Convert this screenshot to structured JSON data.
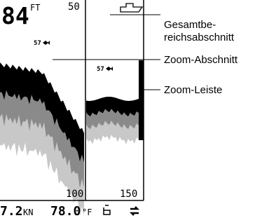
{
  "screen": {
    "depth": "84",
    "depth_unit": "FT",
    "range_top": "50",
    "fish_depths": [
      "57",
      "57"
    ],
    "scale_labels": [
      "100",
      "150"
    ],
    "speed": "7.2",
    "speed_unit": "KN",
    "temperature": "78.0",
    "temperature_unit": "°F"
  },
  "callouts": [
    {
      "label_lines": [
        "Gesamtbe-",
        "reichsabschnitt"
      ]
    },
    {
      "label": "Zoom-Abschnitt"
    },
    {
      "label": "Zoom-Leiste"
    }
  ]
}
